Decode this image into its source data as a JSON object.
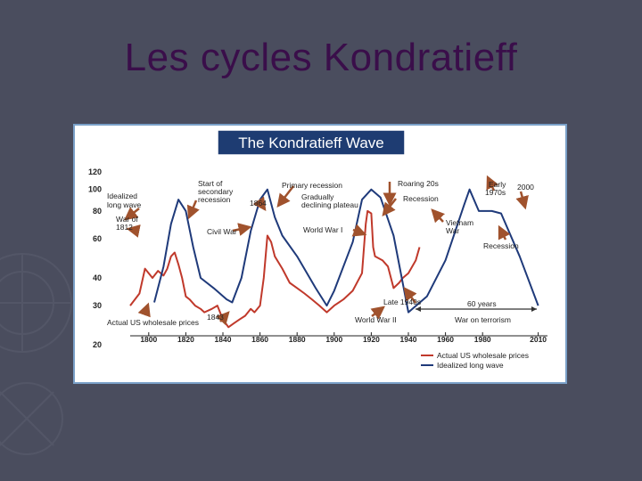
{
  "slide": {
    "title": "Les cycles Kondratieff"
  },
  "colors": {
    "background": "#4a4d5e",
    "title": "#3a0e4a",
    "actual": "#c0392b",
    "idealized": "#1f3a7a",
    "annotation_arrow": "#a0522d",
    "banner": "#1e3c72"
  },
  "chart_data": {
    "type": "line",
    "title": "The Kondratieff Wave",
    "xlabel": "",
    "ylabel": "",
    "xlim": [
      1790,
      2015
    ],
    "ylim": [
      20,
      120
    ],
    "y_scale": "log",
    "x_ticks": [
      "1800",
      "1820",
      "1840",
      "1860",
      "1880",
      "1900",
      "1920",
      "1940",
      "1960",
      "1980",
      "2010"
    ],
    "y_ticks": [
      "120",
      "100",
      "80",
      "60",
      "40",
      "30",
      "20"
    ],
    "y_tick_values": [
      120,
      100,
      80,
      60,
      40,
      30,
      20
    ],
    "legend": {
      "placement": "bottom-right",
      "entries": [
        "Actual US wholesale prices",
        "Idealized long wave"
      ]
    },
    "series": [
      {
        "name": "Actual US wholesale prices",
        "x": [
          1790,
          1795,
          1798,
          1802,
          1805,
          1808,
          1810,
          1812,
          1814,
          1816,
          1818,
          1820,
          1822,
          1825,
          1828,
          1830,
          1834,
          1837,
          1840,
          1843,
          1846,
          1849,
          1852,
          1855,
          1857,
          1860,
          1862,
          1864,
          1866,
          1868,
          1872,
          1876,
          1880,
          1884,
          1888,
          1892,
          1896,
          1900,
          1905,
          1910,
          1915,
          1917,
          1918,
          1920,
          1921,
          1922,
          1926,
          1929,
          1932,
          1935,
          1937,
          1940,
          1944,
          1946
        ],
        "y": [
          30,
          34,
          44,
          40,
          43,
          41,
          44,
          50,
          52,
          46,
          40,
          33,
          32,
          30,
          29,
          28,
          29,
          30,
          26,
          24,
          25,
          26,
          27,
          29,
          28,
          30,
          40,
          62,
          58,
          50,
          44,
          38,
          36,
          34,
          32,
          30,
          28,
          30,
          32,
          35,
          42,
          70,
          80,
          78,
          55,
          50,
          48,
          45,
          36,
          38,
          40,
          42,
          48,
          55
        ]
      },
      {
        "name": "Idealized long wave",
        "x": [
          1803,
          1808,
          1812,
          1816,
          1820,
          1824,
          1828,
          1835,
          1842,
          1845,
          1850,
          1855,
          1860,
          1864,
          1868,
          1872,
          1880,
          1890,
          1896,
          1900,
          1910,
          1915,
          1920,
          1925,
          1932,
          1940,
          1950,
          1960,
          1970,
          1973,
          1978,
          1985,
          1990,
          2000,
          2010
        ],
        "y": [
          31,
          45,
          70,
          90,
          80,
          55,
          40,
          36,
          32,
          31,
          40,
          65,
          90,
          100,
          75,
          62,
          50,
          36,
          30,
          35,
          58,
          90,
          100,
          92,
          62,
          28,
          33,
          48,
          85,
          100,
          80,
          80,
          78,
          50,
          30
        ]
      }
    ],
    "annotations": [
      "Idealized long wave",
      "War of 1812",
      "Start of secondary recession",
      "1864",
      "Primary recession",
      "Gradually declining plateau",
      "Roaring 20s",
      "Recession",
      "Early 1970s",
      "2000",
      "Civil War",
      "World War I",
      "Vietnam War",
      "Recession",
      "Late 1940s",
      "60 years",
      "World War II",
      "War on terrorism",
      "Actual US wholesale prices",
      "1843"
    ]
  }
}
